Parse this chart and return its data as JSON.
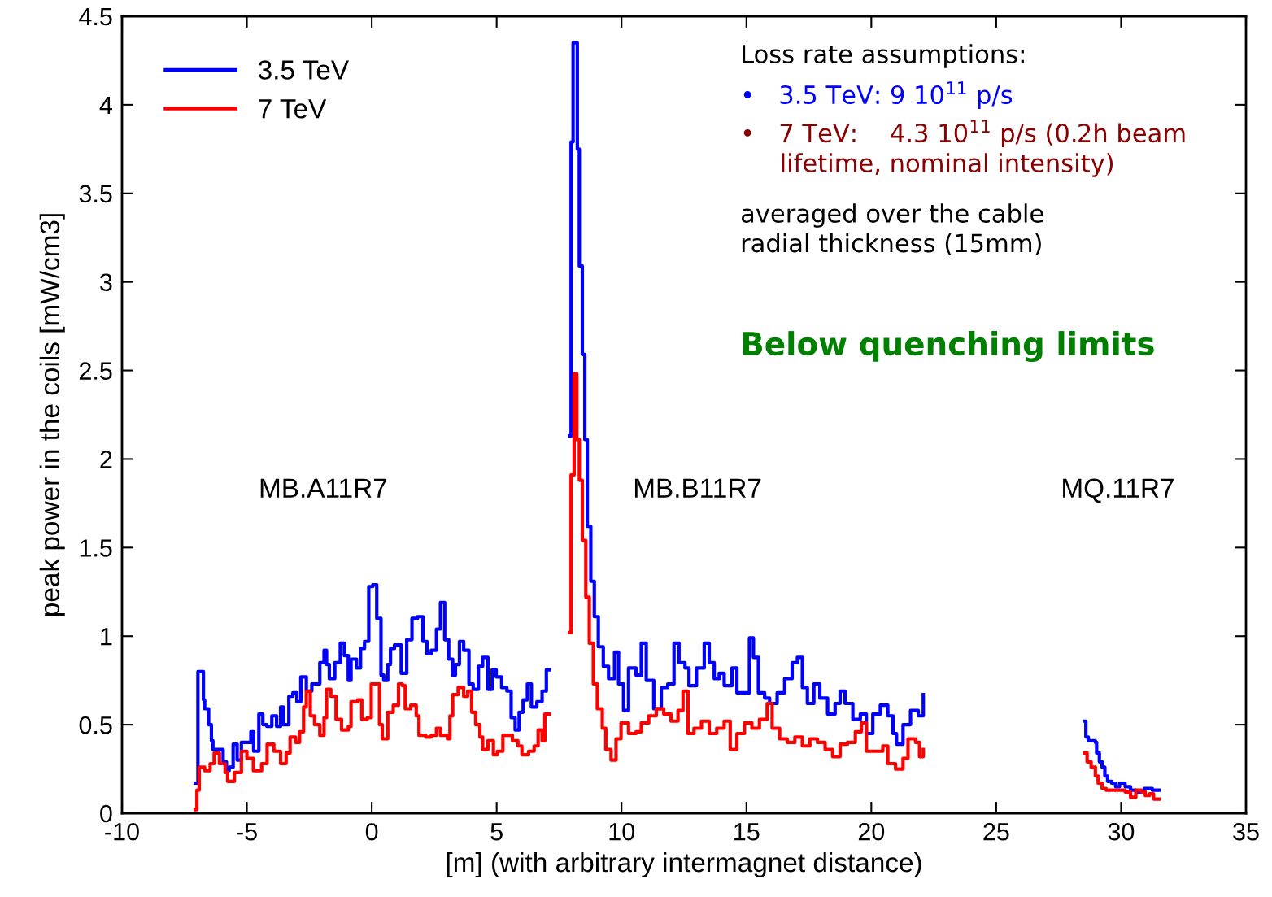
{
  "chart_data": {
    "type": "step",
    "xlabel": "[m] (with arbitrary intermagnet distance)",
    "ylabel": "peak power in the coils [mW/cm3]",
    "xlim": [
      -10,
      35
    ],
    "ylim": [
      0,
      4.5
    ],
    "xticks": [
      -10,
      -5,
      0,
      5,
      10,
      15,
      20,
      25,
      30,
      35
    ],
    "yticks": [
      0,
      0.5,
      1,
      1.5,
      2,
      2.5,
      3,
      3.5,
      4,
      4.5
    ],
    "grid": false,
    "legend": "top left",
    "line_style": "solid",
    "series": [
      {
        "name": "3.5 TeV",
        "color": "#0000ff",
        "x": [
          -7.07,
          -6.96,
          -6.74,
          -6.69,
          -6.53,
          -6.42,
          -6.36,
          -6.2,
          -5.95,
          -5.82,
          -5.71,
          -5.55,
          -5.39,
          -5.22,
          -4.84,
          -4.73,
          -4.52,
          -4.36,
          -4.2,
          -4.0,
          -3.81,
          -3.65,
          -3.54,
          -3.32,
          -3.16,
          -3.0,
          -2.84,
          -2.62,
          -2.4,
          -2.08,
          -1.91,
          -1.81,
          -1.7,
          -1.48,
          -1.26,
          -1.1,
          -0.94,
          -0.83,
          -0.61,
          -0.45,
          -0.29,
          -0.12,
          0.04,
          0.2,
          0.37,
          0.48,
          0.64,
          0.75,
          0.91,
          1.18,
          1.4,
          1.61,
          1.83,
          2.05,
          2.21,
          2.38,
          2.59,
          2.75,
          2.92,
          3.08,
          3.24,
          3.35,
          3.51,
          3.68,
          3.89,
          4.06,
          4.27,
          4.44,
          4.65,
          4.82,
          4.98,
          5.2,
          5.41,
          5.58,
          5.74,
          5.9,
          6.06,
          6.23,
          6.39,
          6.61,
          6.82,
          6.99,
          7.1,
          7.5,
          7.92,
          7.98,
          8.06,
          8.23,
          8.31,
          8.43,
          8.53,
          8.63,
          8.77,
          8.91,
          9.07,
          9.27,
          9.48,
          9.72,
          9.88,
          10.08,
          10.28,
          10.58,
          10.79,
          10.99,
          11.29,
          11.59,
          11.85,
          12.1,
          12.3,
          12.54,
          12.7,
          13.0,
          13.31,
          13.51,
          13.71,
          13.91,
          14.11,
          14.42,
          14.62,
          14.88,
          15.12,
          15.28,
          15.48,
          15.73,
          15.93,
          16.23,
          16.53,
          16.83,
          17.04,
          17.24,
          17.44,
          17.7,
          17.94,
          18.25,
          18.55,
          18.75,
          18.95,
          19.26,
          19.56,
          19.8,
          20.06,
          20.36,
          20.66,
          20.87,
          21.01,
          21.27,
          21.57,
          21.88,
          22.08,
          25,
          28.53,
          28.59,
          28.69,
          28.97,
          29.02,
          29.13,
          29.24,
          29.35,
          29.46,
          29.62,
          29.78,
          29.94,
          30.16,
          30.38,
          30.59,
          30.81,
          30.92,
          31.25,
          31.52
        ],
        "values": [
          0.17,
          0.8,
          0.64,
          0.59,
          0.5,
          0.41,
          0.36,
          0.36,
          0.29,
          0.24,
          0.26,
          0.39,
          0.3,
          0.4,
          0.46,
          0.35,
          0.56,
          0.5,
          0.49,
          0.55,
          0.49,
          0.6,
          0.5,
          0.66,
          0.68,
          0.63,
          0.77,
          0.69,
          0.73,
          0.85,
          0.92,
          0.84,
          0.76,
          0.85,
          0.96,
          0.89,
          0.75,
          0.87,
          0.82,
          0.93,
          0.97,
          1.28,
          1.29,
          1.1,
          0.78,
          0.75,
          0.84,
          0.93,
          0.95,
          0.79,
          0.98,
          1.1,
          1.11,
          0.97,
          0.9,
          0.92,
          1.04,
          1.19,
          0.98,
          0.87,
          0.78,
          0.84,
          0.97,
          0.92,
          0.73,
          0.7,
          0.83,
          0.88,
          0.7,
          0.81,
          0.77,
          0.71,
          0.69,
          0.54,
          0.47,
          0.57,
          0.64,
          0.73,
          0.6,
          0.63,
          0.69,
          0.81,
          0.81,
          null,
          2.13,
          3.79,
          4.35,
          3.75,
          3.09,
          2.59,
          2.11,
          1.62,
          1.31,
          1.11,
          0.94,
          0.83,
          0.76,
          0.91,
          0.73,
          0.58,
          0.82,
          0.78,
          0.96,
          0.75,
          0.59,
          0.71,
          0.73,
          0.96,
          0.85,
          0.82,
          0.72,
          0.82,
          0.96,
          0.85,
          0.76,
          0.79,
          0.72,
          0.82,
          0.68,
          0.68,
          0.99,
          0.88,
          0.68,
          0.65,
          0.62,
          0.68,
          0.76,
          0.85,
          0.88,
          0.71,
          0.62,
          0.73,
          0.65,
          0.56,
          0.62,
          0.69,
          0.62,
          0.53,
          0.56,
          0.45,
          0.56,
          0.61,
          0.55,
          0.45,
          0.39,
          0.5,
          0.58,
          0.55,
          0.67,
          null,
          0.52,
          0.43,
          0.41,
          0.4,
          0.34,
          0.29,
          0.26,
          0.21,
          0.18,
          0.17,
          0.15,
          0.17,
          0.15,
          0.13,
          0.12,
          0.12,
          0.14,
          0.13,
          0.13
        ]
      },
      {
        "name": "7 TeV",
        "color": "#ff0000",
        "x": [
          -7.07,
          -7.0,
          -6.91,
          -6.69,
          -6.47,
          -6.31,
          -6.1,
          -5.87,
          -5.77,
          -5.5,
          -5.22,
          -5.0,
          -4.74,
          -4.41,
          -4.19,
          -3.92,
          -3.65,
          -3.43,
          -3.27,
          -3.05,
          -2.89,
          -2.73,
          -2.62,
          -2.46,
          -2.29,
          -2.08,
          -1.91,
          -1.81,
          -1.64,
          -1.43,
          -1.21,
          -0.94,
          -0.83,
          -0.56,
          -0.4,
          -0.18,
          -0.02,
          0.15,
          0.31,
          0.42,
          0.64,
          0.86,
          1.07,
          1.23,
          1.34,
          1.56,
          1.78,
          1.89,
          2.16,
          2.38,
          2.59,
          2.75,
          3.03,
          3.13,
          3.24,
          3.46,
          3.68,
          3.84,
          4.0,
          4.16,
          4.33,
          4.44,
          4.65,
          4.87,
          5.03,
          5.25,
          5.47,
          5.63,
          5.85,
          6.01,
          6.28,
          6.5,
          6.66,
          6.82,
          6.93,
          7.1,
          7.5,
          7.92,
          7.98,
          8.1,
          8.21,
          8.31,
          8.43,
          8.57,
          8.71,
          8.87,
          9.03,
          9.23,
          9.37,
          9.58,
          9.78,
          9.98,
          10.28,
          10.58,
          10.79,
          11.09,
          11.39,
          11.69,
          11.98,
          12.26,
          12.46,
          12.66,
          12.9,
          13.2,
          13.51,
          13.81,
          14.11,
          14.35,
          14.62,
          14.92,
          15.22,
          15.52,
          15.83,
          16.03,
          16.33,
          16.63,
          16.94,
          17.24,
          17.54,
          17.84,
          18.15,
          18.45,
          18.75,
          19.05,
          19.36,
          19.6,
          19.8,
          20.16,
          20.46,
          20.66,
          20.97,
          21.27,
          21.47,
          21.77,
          21.93,
          22.08,
          25,
          28.53,
          28.64,
          28.8,
          28.97,
          29.08,
          29.24,
          29.4,
          29.84,
          30.16,
          30.38,
          30.59,
          30.81,
          30.97,
          31.14,
          31.3,
          31.52
        ],
        "values": [
          0.02,
          0.13,
          0.26,
          0.24,
          0.28,
          0.34,
          0.28,
          0.23,
          0.18,
          0.23,
          0.35,
          0.31,
          0.24,
          0.28,
          0.39,
          0.35,
          0.28,
          0.34,
          0.43,
          0.4,
          0.46,
          0.6,
          0.69,
          0.55,
          0.5,
          0.44,
          0.54,
          0.7,
          0.66,
          0.53,
          0.47,
          0.49,
          0.63,
          0.64,
          0.53,
          0.54,
          0.73,
          0.73,
          0.5,
          0.42,
          0.57,
          0.61,
          0.73,
          0.72,
          0.59,
          0.61,
          0.55,
          0.44,
          0.43,
          0.44,
          0.48,
          0.44,
          0.42,
          0.55,
          0.67,
          0.71,
          0.66,
          0.69,
          0.57,
          0.5,
          0.43,
          0.36,
          0.41,
          0.33,
          0.35,
          0.44,
          0.44,
          0.41,
          0.38,
          0.33,
          0.35,
          0.38,
          0.47,
          0.41,
          0.56,
          0.56,
          null,
          1.02,
          1.91,
          2.48,
          2.11,
          1.88,
          1.54,
          1.22,
          0.96,
          0.73,
          0.59,
          0.48,
          0.36,
          0.3,
          0.42,
          0.51,
          0.45,
          0.46,
          0.51,
          0.55,
          0.59,
          0.56,
          0.52,
          0.58,
          0.69,
          0.45,
          0.48,
          0.52,
          0.45,
          0.48,
          0.52,
          0.36,
          0.45,
          0.51,
          0.48,
          0.53,
          0.62,
          0.48,
          0.42,
          0.4,
          0.43,
          0.38,
          0.42,
          0.4,
          0.36,
          0.32,
          0.39,
          0.4,
          0.46,
          0.51,
          0.35,
          0.35,
          0.38,
          0.28,
          0.25,
          0.31,
          0.42,
          0.4,
          0.32,
          0.36,
          null,
          0.34,
          0.29,
          0.26,
          0.21,
          0.17,
          0.14,
          0.13,
          0.13,
          0.12,
          0.09,
          0.13,
          0.12,
          0.1,
          0.11,
          0.08,
          0.08
        ]
      }
    ],
    "annotations": [
      "MB.A11R7",
      "MB.B11R7",
      "MQ.11R7",
      "Loss rate assumptions:",
      "•   3.5 TeV: 9 10$^{11}$ p/s",
      "•   7 TeV:    4.3 10$^{11}$ p/s (0.2h beam\n     lifetime, nominal intensity)",
      "averaged over the cable\nradial thickness (15mm)",
      "Below quenching limits"
    ]
  }
}
